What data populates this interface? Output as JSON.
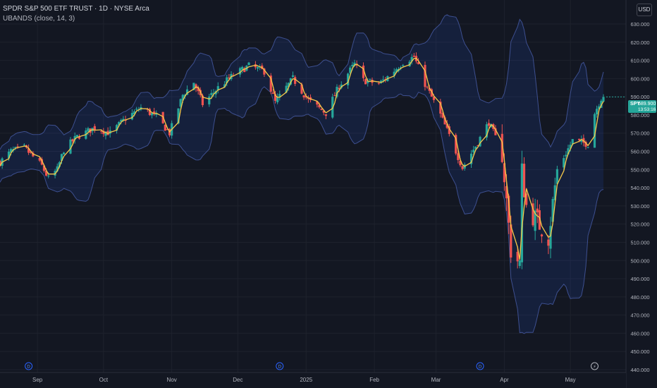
{
  "header": {
    "title": "SPDR S&P 500 ETF TRUST · 1D · NYSE Arca",
    "indicator": "UBANDS (close, 14, 3)",
    "currency": "USD"
  },
  "price_tag": {
    "symbol": "SPY",
    "value": "589.900",
    "countdown": "13:53:16"
  },
  "colors": {
    "up": "#26a69a",
    "down": "#ef5350",
    "band_fill": "#2962ff",
    "band_line": "#3d4f8f",
    "midline": "#f7c948",
    "background": "#131722",
    "grid": "#1e222d"
  },
  "event_markers": [
    {
      "date": "2024-08-28",
      "icon": "earnings-dividend-icon",
      "label": "D"
    },
    {
      "date": "2024-12-20",
      "icon": "earnings-dividend-icon",
      "label": "D"
    },
    {
      "date": "2025-03-21",
      "icon": "earnings-dividend-icon",
      "label": "D"
    },
    {
      "date": "2025-05-12",
      "icon": "lightning-icon",
      "label": "⚡"
    }
  ],
  "chart_data": {
    "type": "candlestick",
    "x_axis": {
      "labels": [
        "Sep",
        "Oct",
        "Nov",
        "Dec",
        "2025",
        "Feb",
        "Mar",
        "Apr",
        "May"
      ]
    },
    "y_axis": {
      "labels": [
        "440.000",
        "450.000",
        "460.000",
        "470.000",
        "480.000",
        "490.000",
        "500.000",
        "510.000",
        "520.000",
        "530.000",
        "540.000",
        "550.000",
        "560.000",
        "570.000",
        "580.000",
        "590.000",
        "600.000",
        "610.000",
        "620.000",
        "630.000"
      ],
      "ylim": [
        440,
        630
      ]
    },
    "grid": true,
    "series": [
      {
        "name": "SPY",
        "kind": "candles",
        "anchors": [
          [
            "2024-08-15",
            554
          ],
          [
            "2024-08-20",
            560
          ],
          [
            "2024-08-26",
            562
          ],
          [
            "2024-09-03",
            552
          ],
          [
            "2024-09-06",
            545
          ],
          [
            "2024-09-10",
            550
          ],
          [
            "2024-09-13",
            561
          ],
          [
            "2024-09-19",
            568
          ],
          [
            "2024-09-27",
            573
          ],
          [
            "2024-10-04",
            570
          ],
          [
            "2024-10-11",
            578
          ],
          [
            "2024-10-18",
            584
          ],
          [
            "2024-10-25",
            579
          ],
          [
            "2024-10-31",
            570
          ],
          [
            "2024-11-06",
            591
          ],
          [
            "2024-11-11",
            598
          ],
          [
            "2024-11-15",
            586
          ],
          [
            "2024-11-22",
            595
          ],
          [
            "2024-11-29",
            602
          ],
          [
            "2024-12-06",
            607
          ],
          [
            "2024-12-13",
            604
          ],
          [
            "2024-12-18",
            587
          ],
          [
            "2024-12-26",
            600
          ],
          [
            "2025-01-02",
            588
          ],
          [
            "2025-01-10",
            581
          ],
          [
            "2025-01-16",
            596
          ],
          [
            "2025-01-23",
            608
          ],
          [
            "2025-01-27",
            599
          ],
          [
            "2025-02-03",
            597
          ],
          [
            "2025-02-07",
            601
          ],
          [
            "2025-02-14",
            609
          ],
          [
            "2025-02-19",
            612
          ],
          [
            "2025-02-24",
            597
          ],
          [
            "2025-03-03",
            580
          ],
          [
            "2025-03-10",
            560
          ],
          [
            "2025-03-13",
            551
          ],
          [
            "2025-03-19",
            563
          ],
          [
            "2025-03-25",
            576
          ],
          [
            "2025-03-31",
            559
          ],
          [
            "2025-04-04",
            506
          ],
          [
            "2025-04-08",
            498
          ],
          [
            "2025-04-09",
            549
          ],
          [
            "2025-04-11",
            530
          ],
          [
            "2025-04-21",
            513
          ],
          [
            "2025-04-25",
            550
          ],
          [
            "2025-05-02",
            566
          ],
          [
            "2025-05-09",
            564
          ],
          [
            "2025-05-12",
            581
          ],
          [
            "2025-05-16",
            592
          ]
        ],
        "last_close": 589.9
      },
      {
        "name": "UBANDS middle",
        "kind": "line"
      },
      {
        "name": "UBANDS upper",
        "kind": "band"
      },
      {
        "name": "UBANDS lower",
        "kind": "band"
      }
    ]
  }
}
